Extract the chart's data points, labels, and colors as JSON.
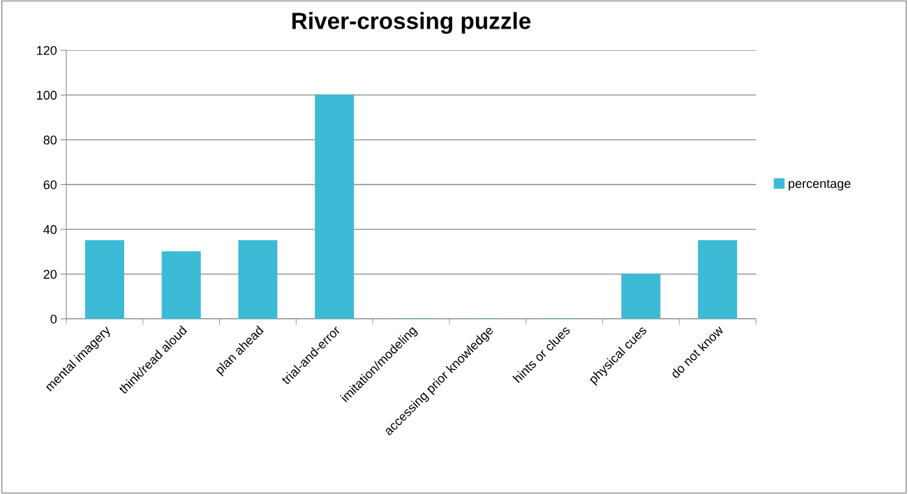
{
  "chart_data": {
    "type": "bar",
    "title": "River-crossing puzzle",
    "categories": [
      "mental imagery",
      "think/read aloud",
      "plan ahead",
      "trial-and-error",
      "imitation/modeling",
      "accessing prior knowledge",
      "hints or clues",
      "physical cues",
      "do not know"
    ],
    "series": [
      {
        "name": "percentage",
        "color": "#3cbad6",
        "values": [
          35,
          30,
          35,
          100,
          0,
          0,
          0,
          20,
          35
        ]
      }
    ],
    "ylim": [
      0,
      120
    ],
    "yticks": [
      0,
      20,
      40,
      60,
      80,
      100,
      120
    ],
    "grid": "y",
    "legend": "right"
  }
}
